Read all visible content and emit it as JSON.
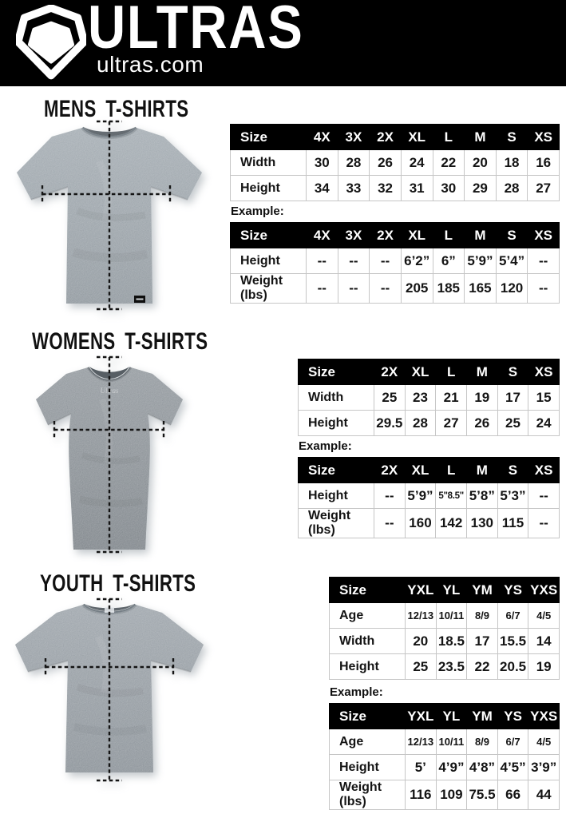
{
  "header": {
    "brand": "ULTRAS",
    "site": "ultras.com"
  },
  "sections": [
    {
      "id": "mens",
      "title": "MENS T-SHIRTS",
      "example_label": "Example:",
      "size_table": {
        "columns": [
          "Size",
          "4X",
          "3X",
          "2X",
          "XL",
          "L",
          "M",
          "S",
          "XS"
        ],
        "rows": [
          {
            "label": "Width",
            "values": [
              "30",
              "28",
              "26",
              "24",
              "22",
              "20",
              "18",
              "16"
            ]
          },
          {
            "label": "Height",
            "values": [
              "34",
              "33",
              "32",
              "31",
              "30",
              "29",
              "28",
              "27"
            ]
          }
        ]
      },
      "example_table": {
        "columns": [
          "Size",
          "4X",
          "3X",
          "2X",
          "XL",
          "L",
          "M",
          "S",
          "XS"
        ],
        "rows": [
          {
            "label": "Height",
            "values": [
              "--",
              "--",
              "--",
              "6’2”",
              "6”",
              "5’9”",
              "5’4”",
              "--"
            ]
          },
          {
            "label": "Weight\n(lbs)",
            "values": [
              "--",
              "--",
              "--",
              "205",
              "185",
              "165",
              "120",
              "--"
            ]
          }
        ]
      }
    },
    {
      "id": "womens",
      "title": "WOMENS T-SHIRTS",
      "example_label": "Example:",
      "size_table": {
        "columns": [
          "Size",
          "2X",
          "XL",
          "L",
          "M",
          "S",
          "XS"
        ],
        "rows": [
          {
            "label": "Width",
            "values": [
              "25",
              "23",
              "21",
              "19",
              "17",
              "15"
            ]
          },
          {
            "label": "Height",
            "values": [
              "29.5",
              "28",
              "27",
              "26",
              "25",
              "24"
            ]
          }
        ]
      },
      "example_table": {
        "columns": [
          "Size",
          "2X",
          "XL",
          "L",
          "M",
          "S",
          "XS"
        ],
        "rows": [
          {
            "label": "Height",
            "values": [
              "--",
              "5’9”",
              "5\"8.5\"",
              "5’8”",
              "5’3”",
              "--"
            ]
          },
          {
            "label": "Weight\n(lbs)",
            "values": [
              "--",
              "160",
              "142",
              "130",
              "115",
              "--"
            ]
          }
        ]
      }
    },
    {
      "id": "youth",
      "title": "YOUTH T-SHIRTS",
      "example_label": "Example:",
      "size_table": {
        "columns": [
          "Size",
          "YXL",
          "YL",
          "YM",
          "YS",
          "YXS"
        ],
        "rows": [
          {
            "label": "Age",
            "small": true,
            "values": [
              "12/13",
              "10/11",
              "8/9",
              "6/7",
              "4/5"
            ]
          },
          {
            "label": "Width",
            "values": [
              "20",
              "18.5",
              "17",
              "15.5",
              "14"
            ]
          },
          {
            "label": "Height",
            "values": [
              "25",
              "23.5",
              "22",
              "20.5",
              "19"
            ]
          }
        ]
      },
      "example_table": {
        "columns": [
          "Size",
          "YXL",
          "YL",
          "YM",
          "YS",
          "YXS"
        ],
        "rows": [
          {
            "label": "Age",
            "small": true,
            "values": [
              "12/13",
              "10/11",
              "8/9",
              "6/7",
              "4/5"
            ]
          },
          {
            "label": "Height",
            "values": [
              "5’",
              "4’9”",
              "4’8”",
              "4’5”",
              "3’9”"
            ]
          },
          {
            "label": "Weight\n(lbs)",
            "values": [
              "116",
              "109",
              "75.5",
              "66",
              "44"
            ]
          }
        ]
      }
    }
  ]
}
